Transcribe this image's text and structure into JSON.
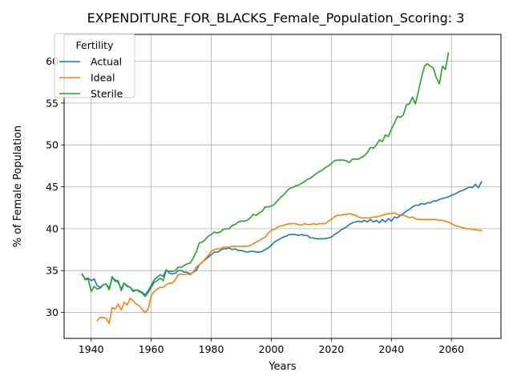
{
  "chart_data": {
    "type": "line",
    "title": "EXPENDITURE_FOR_BLACKS_Female_Population_Scoring: 3",
    "xlabel": "Years",
    "ylabel": "% of Female Population",
    "xlim": [
      1931,
      2076.5
    ],
    "ylim": [
      26.9,
      63.2
    ],
    "xticks": [
      1940,
      1960,
      1980,
      2000,
      2020,
      2040,
      2060
    ],
    "yticks": [
      30,
      35,
      40,
      45,
      50,
      55,
      60
    ],
    "grid": true,
    "legend": {
      "title": "Fertility",
      "placement": "top-left"
    },
    "series": [
      {
        "name": "Actual",
        "color": "#1f77b4",
        "x": [
          1937,
          1938,
          1939,
          1940,
          1941,
          1942,
          1943,
          1944,
          1945,
          1946,
          1947,
          1948,
          1949,
          1950,
          1951,
          1952,
          1953,
          1954,
          1955,
          1956,
          1957,
          1958,
          1959,
          1960,
          1961,
          1962,
          1963,
          1964,
          1965,
          1966,
          1967,
          1968,
          1969,
          1970,
          1971,
          1972,
          1973,
          1974,
          1975,
          1976,
          1977,
          1978,
          1979,
          1980,
          1981,
          1982,
          1983,
          1984,
          1985,
          1986,
          1987,
          1988,
          1989,
          1990,
          1991,
          1992,
          1993,
          1994,
          1995,
          1996,
          1997,
          1998,
          1999,
          2000,
          2001,
          2002,
          2003,
          2004,
          2005,
          2006,
          2007,
          2008,
          2009,
          2010,
          2011,
          2012,
          2013,
          2014,
          2015,
          2016,
          2017,
          2018,
          2019,
          2020,
          2021,
          2022,
          2023,
          2024,
          2025,
          2026,
          2027,
          2028,
          2029,
          2030,
          2031,
          2032,
          2033,
          2034,
          2035,
          2036,
          2037,
          2038,
          2039,
          2040,
          2041,
          2042,
          2043,
          2044,
          2045,
          2046,
          2047,
          2048,
          2049,
          2050,
          2051,
          2052,
          2053,
          2054,
          2055,
          2056,
          2057,
          2058,
          2059,
          2060,
          2061,
          2062,
          2063,
          2064,
          2065,
          2066,
          2067,
          2068,
          2069,
          2070
        ],
        "values": [
          34.5,
          34.0,
          34.1,
          33.8,
          34.0,
          33.2,
          33.0,
          33.3,
          33.4,
          32.9,
          34.1,
          33.9,
          33.6,
          32.8,
          33.5,
          33.1,
          33.0,
          32.6,
          32.7,
          32.6,
          32.4,
          32.1,
          32.6,
          33.2,
          33.9,
          34.2,
          34.5,
          34.3,
          35.1,
          34.7,
          34.6,
          34.7,
          35.0,
          35.0,
          34.8,
          34.8,
          34.6,
          34.8,
          35.0,
          35.7,
          36.0,
          36.3,
          36.6,
          36.9,
          37.2,
          37.2,
          37.4,
          37.6,
          37.6,
          37.7,
          37.5,
          37.6,
          37.4,
          37.4,
          37.3,
          37.2,
          37.3,
          37.3,
          37.2,
          37.2,
          37.3,
          37.5,
          37.7,
          38.0,
          38.4,
          38.6,
          38.8,
          39.0,
          39.1,
          39.3,
          39.3,
          39.3,
          39.2,
          39.3,
          39.2,
          39.2,
          38.9,
          38.9,
          38.8,
          38.8,
          38.8,
          38.8,
          38.9,
          39.0,
          39.3,
          39.5,
          39.8,
          40.0,
          40.2,
          40.5,
          40.7,
          40.8,
          40.9,
          40.8,
          41.0,
          40.8,
          41.1,
          40.8,
          41.0,
          40.7,
          41.1,
          40.8,
          41.2,
          40.9,
          41.4,
          41.3,
          41.6,
          41.8,
          42.1,
          42.3,
          42.6,
          42.8,
          42.8,
          43.0,
          42.9,
          43.1,
          43.1,
          43.3,
          43.3,
          43.5,
          43.6,
          43.7,
          43.8,
          44.0,
          44.1,
          44.3,
          44.5,
          44.6,
          44.8,
          45.0,
          44.9,
          45.3,
          44.9,
          45.6
        ]
      },
      {
        "name": "Ideal",
        "color": "#ff7f0e",
        "x": [
          1942,
          1943,
          1944,
          1945,
          1946,
          1947,
          1948,
          1949,
          1950,
          1951,
          1952,
          1953,
          1954,
          1955,
          1956,
          1957,
          1958,
          1959,
          1960,
          1961,
          1962,
          1963,
          1964,
          1965,
          1966,
          1967,
          1968,
          1969,
          1970,
          1971,
          1972,
          1973,
          1974,
          1975,
          1976,
          1977,
          1978,
          1979,
          1980,
          1981,
          1982,
          1983,
          1984,
          1985,
          1986,
          1987,
          1988,
          1989,
          1990,
          1991,
          1992,
          1993,
          1994,
          1995,
          1996,
          1997,
          1998,
          1999,
          2000,
          2001,
          2002,
          2003,
          2004,
          2005,
          2006,
          2007,
          2008,
          2009,
          2010,
          2011,
          2012,
          2013,
          2014,
          2015,
          2016,
          2017,
          2018,
          2019,
          2020,
          2021,
          2022,
          2023,
          2024,
          2025,
          2026,
          2027,
          2028,
          2029,
          2030,
          2031,
          2032,
          2033,
          2034,
          2035,
          2036,
          2037,
          2038,
          2039,
          2040,
          2041,
          2042,
          2043,
          2044,
          2045,
          2046,
          2047,
          2048,
          2049,
          2050,
          2051,
          2052,
          2053,
          2054,
          2055,
          2056,
          2057,
          2058,
          2059,
          2060,
          2061,
          2062,
          2063,
          2064,
          2065,
          2066,
          2067,
          2068,
          2069,
          2070
        ],
        "values": [
          29.0,
          29.4,
          29.4,
          29.3,
          28.7,
          30.6,
          30.4,
          31.0,
          30.3,
          31.2,
          30.9,
          31.7,
          31.4,
          31.0,
          30.8,
          30.4,
          30.0,
          30.4,
          32.0,
          32.5,
          32.8,
          33.0,
          33.0,
          33.3,
          33.5,
          33.5,
          33.9,
          34.5,
          34.6,
          34.5,
          34.6,
          34.5,
          34.8,
          35.4,
          35.7,
          36.0,
          36.4,
          36.8,
          37.3,
          37.5,
          37.6,
          37.6,
          37.8,
          37.8,
          37.8,
          37.9,
          37.9,
          37.9,
          37.9,
          37.9,
          37.9,
          38.0,
          38.2,
          38.4,
          38.6,
          38.8,
          39.0,
          39.5,
          39.8,
          39.9,
          40.2,
          40.3,
          40.4,
          40.5,
          40.6,
          40.6,
          40.6,
          40.5,
          40.4,
          40.6,
          40.5,
          40.5,
          40.6,
          40.5,
          40.6,
          40.6,
          40.6,
          40.9,
          41.1,
          41.4,
          41.6,
          41.6,
          41.7,
          41.7,
          41.8,
          41.7,
          41.6,
          41.4,
          41.3,
          41.3,
          41.3,
          41.3,
          41.4,
          41.4,
          41.5,
          41.6,
          41.7,
          41.8,
          41.8,
          41.9,
          41.7,
          41.6,
          41.6,
          41.5,
          41.3,
          41.4,
          41.2,
          41.1,
          41.1,
          41.1,
          41.1,
          41.1,
          41.1,
          41.1,
          41.0,
          41.0,
          40.9,
          40.8,
          40.6,
          40.4,
          40.3,
          40.2,
          40.1,
          40.0,
          40.0,
          39.9,
          39.9,
          39.8,
          39.8
        ]
      },
      {
        "name": "Sterile",
        "color": "#2ca02c",
        "x": [
          1937,
          1938,
          1939,
          1940,
          1941,
          1942,
          1943,
          1944,
          1945,
          1946,
          1947,
          1948,
          1949,
          1950,
          1951,
          1952,
          1953,
          1954,
          1955,
          1956,
          1957,
          1958,
          1959,
          1960,
          1961,
          1962,
          1963,
          1964,
          1965,
          1966,
          1967,
          1968,
          1969,
          1970,
          1971,
          1972,
          1973,
          1974,
          1975,
          1976,
          1977,
          1978,
          1979,
          1980,
          1981,
          1982,
          1983,
          1984,
          1985,
          1986,
          1987,
          1988,
          1989,
          1990,
          1991,
          1992,
          1993,
          1994,
          1995,
          1996,
          1997,
          1998,
          1999,
          2000,
          2001,
          2002,
          2003,
          2004,
          2005,
          2006,
          2007,
          2008,
          2009,
          2010,
          2011,
          2012,
          2013,
          2014,
          2015,
          2016,
          2017,
          2018,
          2019,
          2020,
          2021,
          2022,
          2023,
          2024,
          2025,
          2026,
          2027,
          2028,
          2029,
          2030,
          2031,
          2032,
          2033,
          2034,
          2035,
          2036,
          2037,
          2038,
          2039,
          2040,
          2041,
          2042,
          2043,
          2044,
          2045,
          2046,
          2047,
          2048,
          2049,
          2050,
          2051,
          2052,
          2053,
          2054,
          2055,
          2056,
          2057,
          2058,
          2059
        ],
        "values": [
          34.6,
          33.9,
          34.0,
          32.5,
          33.1,
          32.8,
          32.9,
          33.3,
          33.4,
          32.7,
          34.3,
          33.7,
          33.8,
          32.6,
          33.5,
          33.2,
          33.0,
          32.5,
          32.7,
          32.5,
          32.3,
          31.9,
          32.4,
          33.0,
          33.6,
          33.8,
          34.1,
          33.8,
          35.0,
          34.9,
          34.9,
          35.0,
          35.4,
          35.4,
          35.6,
          35.8,
          35.9,
          36.5,
          37.2,
          38.3,
          38.4,
          38.7,
          39.1,
          39.3,
          39.6,
          39.5,
          39.6,
          39.9,
          40.0,
          40.0,
          40.4,
          40.5,
          40.8,
          40.9,
          40.9,
          41.0,
          41.3,
          41.7,
          41.6,
          41.9,
          42.1,
          42.6,
          42.6,
          42.7,
          42.9,
          43.3,
          43.7,
          44.0,
          44.4,
          44.8,
          44.9,
          45.1,
          45.2,
          45.4,
          45.6,
          45.9,
          46.0,
          46.3,
          46.6,
          46.8,
          47.0,
          47.3,
          47.5,
          47.8,
          48.1,
          48.2,
          48.2,
          48.2,
          48.1,
          47.9,
          48.3,
          48.3,
          48.3,
          48.5,
          48.7,
          49.1,
          49.7,
          49.6,
          50.0,
          50.6,
          50.4,
          51.2,
          51.0,
          51.9,
          52.6,
          53.4,
          53.3,
          53.6,
          54.8,
          54.9,
          55.7,
          54.9,
          56.4,
          58.0,
          59.4,
          59.7,
          59.4,
          59.2,
          58.0,
          57.3,
          59.4,
          59.0,
          61.0
        ]
      }
    ]
  }
}
